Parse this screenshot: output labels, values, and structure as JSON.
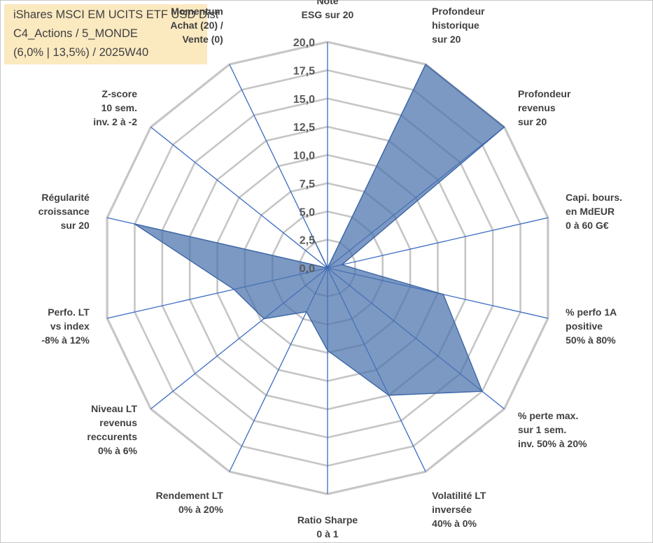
{
  "title_lines": [
    "iShares MSCI EM UCITS ETF USD Dist",
    "C4_Actions / 5_MONDE",
    "(6,0% | 13,5%) / 2025W40"
  ],
  "chart_data": {
    "type": "radar",
    "rmin": 0,
    "rmax": 20,
    "tick_values": [
      0,
      2.5,
      5,
      7.5,
      10,
      12.5,
      15,
      17.5,
      20
    ],
    "tick_labels": [
      "0,0",
      "2,5",
      "5,0",
      "7,5",
      "10,0",
      "12,5",
      "15,0",
      "17,5",
      "20,0"
    ],
    "grid": true,
    "axes": [
      {
        "label": [
          "Note",
          "ESG sur 20"
        ],
        "value": 0
      },
      {
        "label": [
          "Profondeur",
          "historique",
          "sur 20"
        ],
        "value": 20
      },
      {
        "label": [
          "Profondeur",
          "revenus",
          "sur 20"
        ],
        "value": 20
      },
      {
        "label": [
          "Capi. bours.",
          "en MdEUR",
          "0 à 60 G€"
        ],
        "value": 1.3
      },
      {
        "label": [
          "% perfo 1A",
          "positive",
          "50% à 80%"
        ],
        "value": 10.5
      },
      {
        "label": [
          "% perte max.",
          "sur 1 sem.",
          "inv. 50% à 20%"
        ],
        "value": 17.5
      },
      {
        "label": [
          "Volatilité LT",
          "inversée",
          "40% à 0%"
        ],
        "value": 12.5
      },
      {
        "label": [
          "Ratio Sharpe",
          "0 à 1"
        ],
        "value": 7.3
      },
      {
        "label": [
          "Rendement LT",
          "0% à 20%"
        ],
        "value": 4.3
      },
      {
        "label": [
          "Niveau LT",
          "revenus",
          "reccurents",
          "0% à 6%"
        ],
        "value": 7.2
      },
      {
        "label": [
          "Perfo. LT",
          "vs index",
          "-8% à 12%"
        ],
        "value": 8.5
      },
      {
        "label": [
          "Régularité",
          "croissance",
          "sur 20"
        ],
        "value": 17.5
      },
      {
        "label": [
          "Z-score",
          "10 sem.",
          "inv. 2 à -2"
        ],
        "value": 0
      },
      {
        "label": [
          "Momentum",
          "Achat (20) /",
          "Vente (0)"
        ],
        "value": 3.3
      }
    ],
    "series": [
      {
        "values": [
          0,
          20,
          20,
          1.3,
          10.5,
          17.5,
          12.5,
          7.3,
          4.3,
          7.2,
          8.5,
          17.5,
          0,
          3.3
        ]
      }
    ],
    "colors": {
      "fill": "#4a72ad",
      "stroke": "#3d67a6",
      "spoke": "#3a6bc2",
      "grid": "#c6c6c6",
      "title_bg": "#fbe9c0"
    }
  }
}
